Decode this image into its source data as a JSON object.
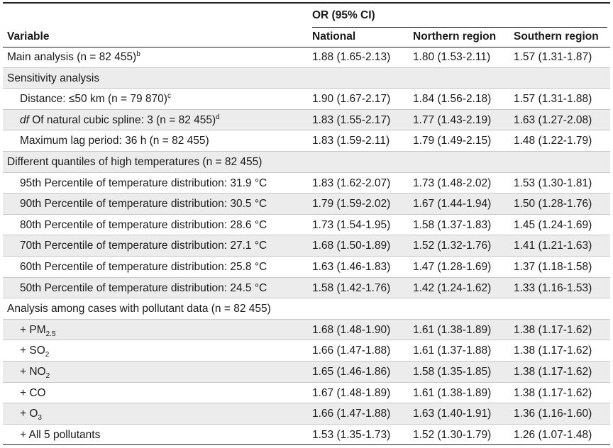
{
  "header": {
    "group_label": "OR (95% CI)",
    "col_variable": "Variable",
    "col_national": "National",
    "col_northern": "Northern region",
    "col_southern": "Southern region"
  },
  "rows": [
    {
      "label": "Main analysis (n = 82 455)",
      "sup": "b",
      "national": "1.88 (1.65-2.13)",
      "northern": "1.80 (1.53-2.11)",
      "southern": "1.57 (1.31-1.87)"
    },
    {
      "label": "Sensitivity analysis",
      "national": "",
      "northern": "",
      "southern": ""
    },
    {
      "label": "Distance: ≤50 km (n = 79 870)",
      "sup": "c",
      "national": "1.90 (1.67-2.17)",
      "northern": "1.84 (1.56-2.18)",
      "southern": "1.57 (1.31-1.88)"
    },
    {
      "label_italic": "df",
      "label": " Of natural cubic spline: 3 (n = 82 455)",
      "sup": "d",
      "national": "1.83 (1.55-2.17)",
      "northern": "1.77 (1.43-2.19)",
      "southern": "1.63 (1.27-2.08)"
    },
    {
      "label": "Maximum lag period: 36 h (n = 82 455)",
      "national": "1.83 (1.59-2.11)",
      "northern": "1.79 (1.49-2.15)",
      "southern": "1.48 (1.22-1.79)"
    },
    {
      "label": "Different quantiles of high temperatures (n = 82 455)",
      "national": "",
      "northern": "",
      "southern": ""
    },
    {
      "label": "95th Percentile of temperature distribution: 31.9 °C",
      "national": "1.83 (1.62-2.07)",
      "northern": "1.73 (1.48-2.02)",
      "southern": "1.53 (1.30-1.81)"
    },
    {
      "label": "90th Percentile of temperature distribution: 30.5 °C",
      "national": "1.79 (1.59-2.02)",
      "northern": "1.67 (1.44-1.94)",
      "southern": "1.50 (1.28-1.76)"
    },
    {
      "label": "80th Percentile of temperature distribution: 28.6 °C",
      "national": "1.73 (1.54-1.95)",
      "northern": "1.58 (1.37-1.83)",
      "southern": "1.45 (1.24-1.69)"
    },
    {
      "label": "70th Percentile of temperature distribution: 27.1 °C",
      "national": "1.68 (1.50-1.89)",
      "northern": "1.52 (1.32-1.76)",
      "southern": "1.41 (1.21-1.63)"
    },
    {
      "label": "60th Percentile of temperature distribution: 25.8 °C",
      "national": "1.63 (1.46-1.83)",
      "northern": "1.47 (1.28-1.69)",
      "southern": "1.37 (1.18-1.58)"
    },
    {
      "label": "50th Percentile of temperature distribution: 24.5 °C",
      "national": "1.58 (1.42-1.76)",
      "northern": "1.42 (1.24-1.62)",
      "southern": "1.33 (1.16-1.53)"
    },
    {
      "label": "Analysis among cases with pollutant data (n = 82 455)",
      "national": "",
      "northern": "",
      "southern": ""
    },
    {
      "label": "+ PM",
      "sub": "2.5",
      "national": "1.68 (1.48-1.90)",
      "northern": "1.61 (1.38-1.89)",
      "southern": "1.38 (1.17-1.62)"
    },
    {
      "label": "+ SO",
      "sub": "2",
      "national": "1.66 (1.47-1.88)",
      "northern": "1.61 (1.37-1.88)",
      "southern": "1.38 (1.17-1.62)"
    },
    {
      "label": "+ NO",
      "sub": "2",
      "national": "1.65 (1.46-1.86)",
      "northern": "1.58 (1.35-1.85)",
      "southern": "1.38 (1.17-1.62)"
    },
    {
      "label": "+ CO",
      "national": "1.67 (1.48-1.89)",
      "northern": "1.61 (1.38-1.89)",
      "southern": "1.38 (1.17-1.62)"
    },
    {
      "label": "+ O",
      "sub": "3",
      "national": "1.66 (1.47-1.88)",
      "northern": "1.63 (1.40-1.91)",
      "southern": "1.36 (1.16-1.60)"
    },
    {
      "label": "+ All 5 pollutants",
      "national": "1.53 (1.35-1.73)",
      "northern": "1.52 (1.30-1.79)",
      "southern": "1.26 (1.07-1.48)"
    }
  ]
}
